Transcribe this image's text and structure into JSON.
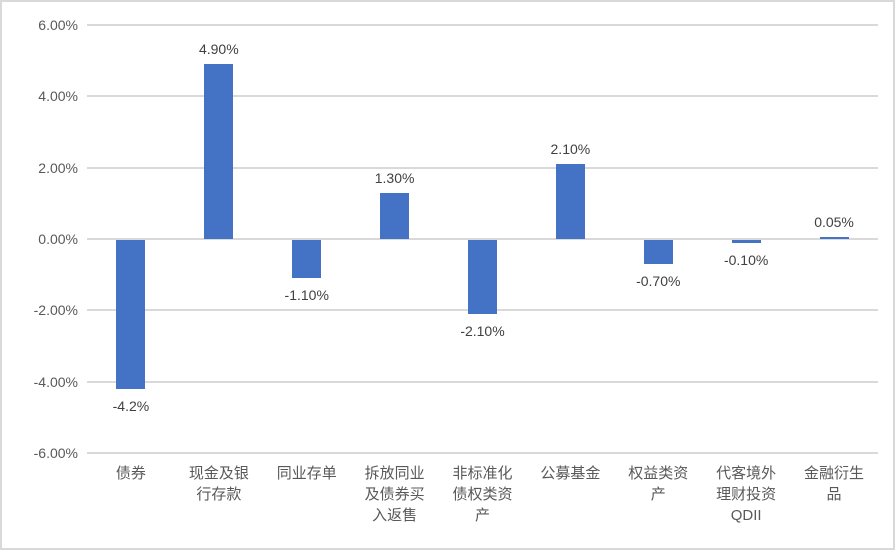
{
  "chart_data": {
    "type": "bar",
    "title": "",
    "xlabel": "",
    "ylabel": "",
    "categories": [
      "债券",
      "现金及银行存款",
      "同业存单",
      "拆放同业及债券买入返售",
      "非标准化债权类资产",
      "公募基金",
      "权益类资产",
      "代客境外理财投资QDII",
      "金融衍生品"
    ],
    "values": [
      -4.2,
      4.9,
      -1.1,
      1.3,
      -2.1,
      2.1,
      -0.7,
      -0.1,
      0.05
    ],
    "value_labels": [
      "-4.2%",
      "4.90%",
      "-1.10%",
      "1.30%",
      "-2.10%",
      "2.10%",
      "-0.70%",
      "-0.10%",
      "0.05%"
    ],
    "ylim": [
      -6,
      6
    ],
    "y_ticks": [
      6,
      4,
      2,
      0,
      -2,
      -4,
      -6
    ],
    "y_tick_labels": [
      "6.00%",
      "4.00%",
      "2.00%",
      "0.00%",
      "-2.00%",
      "-4.00%",
      "-6.00%"
    ],
    "grid": true,
    "legend": false,
    "colors": {
      "bar": "#4472C4",
      "gridline": "#D9D9D9",
      "axis_label": "#595959",
      "data_label": "#404040",
      "border": "#D9D9D9",
      "background": "#FFFFFF"
    }
  }
}
